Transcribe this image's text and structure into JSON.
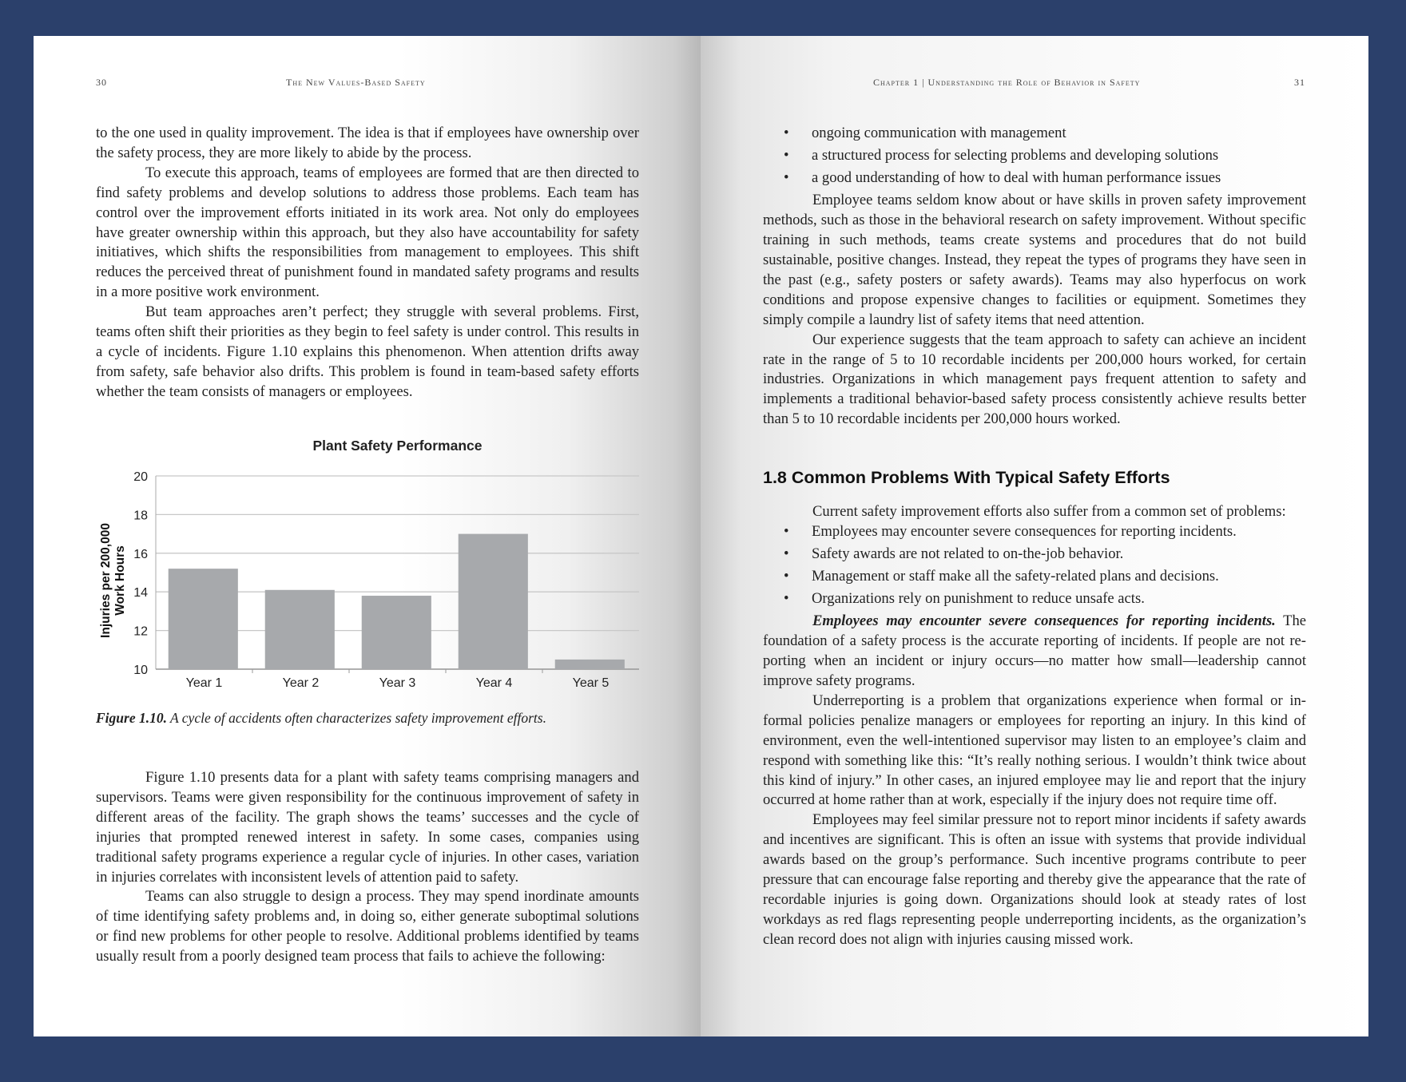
{
  "left_page": {
    "page_number": "30",
    "running_head": "The New Values-Based Safety",
    "top_paragraphs": [
      {
        "indent": false,
        "text": "to the one used in quality improvement. The idea is that if employees have ownership over the safety process, they are more likely to abide by the process."
      },
      {
        "indent": true,
        "text": "To execute this approach, teams of employees are formed that are then directed to find safety problems and develop solutions to address those problems. Each team has control over the improvement efforts initiated in its work area. Not only do employ­ees have greater ownership within this approach, but they also have accountability for safety initiatives, which shifts the responsibilities from management to employees. This shift reduces the perceived threat of punishment found in mandated safety programs and results in a more positive work environment."
      },
      {
        "indent": true,
        "text": "But team approaches aren’t perfect; they struggle with several problems. First, teams often shift their priorities as they begin to feel safety is under control. This results in a cycle of incidents. Figure 1.10 explains this phenomenon. When attention drifts away from safety, safe behavior also drifts. This problem is found in team-based safety efforts whether the team consists of managers or employees."
      }
    ],
    "figure_caption_label": "Figure 1.10.",
    "figure_caption_text": " A cycle of accidents often characterizes safety improvement efforts.",
    "bottom_paragraphs": [
      {
        "indent": true,
        "text": "Figure 1.10 presents data for a plant with safety teams comprising managers and supervisors. Teams were given responsibility for the continuous improvement of safety in different areas of the facility. The graph shows the teams’ successes and the cycle of injuries that prompted renewed interest in safety. In some cases, companies using traditional safety programs experience a regular cycle of injuries. In other cases, variation in injuries correlates with inconsistent levels of attention paid to safety."
      },
      {
        "indent": true,
        "text": "Teams can also struggle to design a process. They may spend inordinate amounts of time identifying safety problems and, in doing so, either generate subop­timal solutions or find new problems for other people to resolve. Additional problems identified by teams usually result from a poorly designed team process that fails to achieve the following:"
      }
    ]
  },
  "chart_data": {
    "type": "bar",
    "title": "Plant Safety Performance",
    "ylabel": "Injuries per 200,000 Work Hours",
    "categories": [
      "Year 1",
      "Year 2",
      "Year 3",
      "Year 4",
      "Year 5"
    ],
    "values": [
      15.2,
      14.1,
      13.8,
      17.0,
      10.5
    ],
    "ylim": [
      10,
      20
    ],
    "yticks": [
      "10",
      "12",
      "14",
      "16",
      "18",
      "20"
    ],
    "grid": true,
    "bar_color": "#a7a9ac"
  },
  "right_page": {
    "page_number": "31",
    "running_head": "Chapter 1 | Understanding the Role of Behavior in Safety",
    "top_bullets": [
      "ongoing communication with management",
      "a structured process for selecting problems and developing solutions",
      "a good understanding of how to deal with human performance issues"
    ],
    "top_paragraphs": [
      {
        "indent": true,
        "text": "Employee teams seldom know about or have skills in proven safety improve­ment methods, such as those in the behavioral research on safety improvement. Without specific training in such methods, teams create systems and procedures that do not build sustainable, positive changes. Instead, they repeat the types of programs they have seen in the past (e.g., safety posters or safety awards). Teams may also hy­perfocus on work conditions and propose expensive changes to facilities or equipment. Sometimes they simply compile a laundry list of safety items that need attention."
      },
      {
        "indent": true,
        "text": "Our experience suggests that the team approach to safety can achieve an in­cident rate in the range of 5 to 10 recordable incidents per 200,000 hours worked, for certain industries. Organizations in which management pays frequent attention to safety and implements a traditional behavior-based safety process consistently achieve results better than 5 to 10 recordable incidents per 200,000 hours worked."
      }
    ],
    "section_heading": "1.8 Common Problems With Typical Safety Efforts",
    "intro": "Current safety improvement efforts also suffer from a common set of problems:",
    "problem_bullets": [
      "Employees may encounter severe consequences for reporting incidents.",
      "Safety awards are not related to on-the-job behavior.",
      "Management or staff make all the safety-related plans and decisions.",
      "Organizations rely on punishment to reduce unsafe acts."
    ],
    "lead_in_bold": "Employees may encounter severe consequences for reporting incidents.",
    "lead_in_rest": " The foun­dation of a safety process is the accurate reporting of incidents. If people are not re­porting when an incident or injury occurs—no matter how small—leadership cannot improve safety programs.",
    "bottom_paragraphs": [
      {
        "indent": true,
        "text": "Underreporting is a problem that organizations experience when formal or in­formal policies penalize managers or employees for reporting an injury. In this kind of environment, even the well-intentioned supervisor may listen to an employee’s claim and respond with something like this: “It’s really nothing serious. I wouldn’t think twice about this kind of injury.” In other cases, an injured employee may lie and report that the injury occurred at home rather than at work, especially if the injury does not require time off."
      },
      {
        "indent": true,
        "text": "Employees may feel similar pressure not to report minor incidents if safety awards and incentives are significant. This is often an issue with systems that provide individual awards based on the group’s performance. Such incentive programs contrib­ute to peer pressure that can encourage false reporting and thereby give the appearance that the rate of recordable injuries is going down. Organizations should look at steady rates of lost workdays as red flags representing people underreporting incidents, as the organization’s clean record does not align with injuries causing missed work."
      }
    ]
  }
}
